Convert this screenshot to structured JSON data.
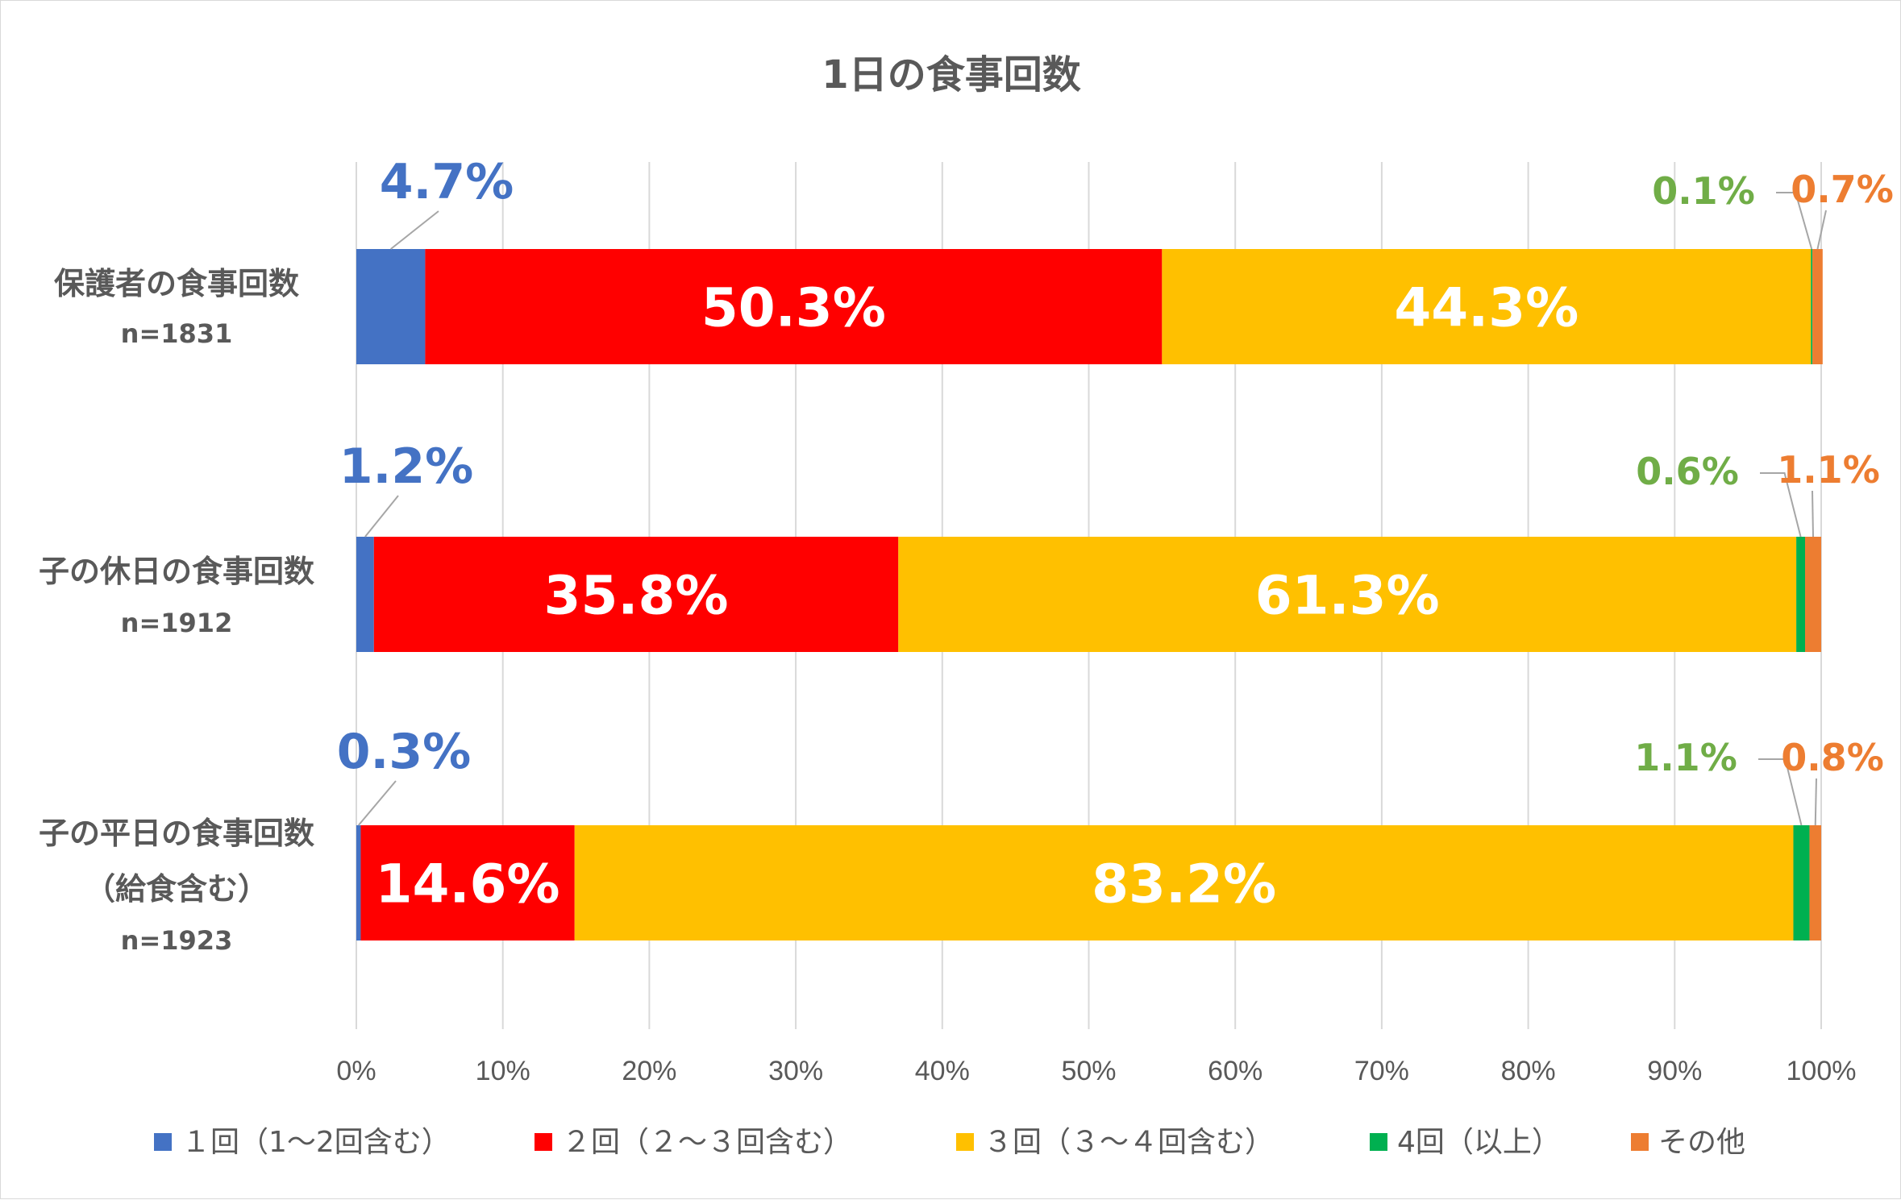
{
  "chart_data": {
    "type": "bar",
    "orientation": "horizontal",
    "stacked": true,
    "title": "1日の食事回数",
    "xlim": [
      0,
      100
    ],
    "x_ticks": [
      "0%",
      "10%",
      "20%",
      "30%",
      "40%",
      "50%",
      "60%",
      "70%",
      "80%",
      "90%",
      "100%"
    ],
    "grid": true,
    "legend_position": "bottom",
    "categories": [
      {
        "label_lines": [
          "保護者の食事回数",
          "n=1831"
        ]
      },
      {
        "label_lines": [
          "子の休日の食事回数",
          "n=1912"
        ]
      },
      {
        "label_lines": [
          "子の平日の食事回数",
          "（給食含む）",
          "n=1923"
        ]
      }
    ],
    "series": [
      {
        "name": "１回（1〜2回含む）",
        "color": "#4472C4",
        "values": [
          4.7,
          1.2,
          0.3
        ],
        "labels": [
          "4.7%",
          "1.2%",
          "0.3%"
        ]
      },
      {
        "name": "２回（２〜３回含む）",
        "color": "#FF0000",
        "values": [
          50.3,
          35.8,
          14.6
        ],
        "labels": [
          "50.3%",
          "35.8%",
          "14.6%"
        ]
      },
      {
        "name": "３回（３〜４回含む）",
        "color": "#FFC000",
        "values": [
          44.3,
          61.3,
          83.2
        ],
        "labels": [
          "44.3%",
          "61.3%",
          "83.2%"
        ]
      },
      {
        "name": "4回（以上）",
        "color": "#00B050",
        "values": [
          0.1,
          0.6,
          1.1
        ],
        "labels": [
          "0.1%",
          "0.6%",
          "1.1%"
        ],
        "label_color": "#70AD47"
      },
      {
        "name": "その他",
        "color": "#ED7D31",
        "values": [
          0.7,
          1.1,
          0.8
        ],
        "labels": [
          "0.7%",
          "1.1%",
          "0.8%"
        ]
      }
    ]
  }
}
